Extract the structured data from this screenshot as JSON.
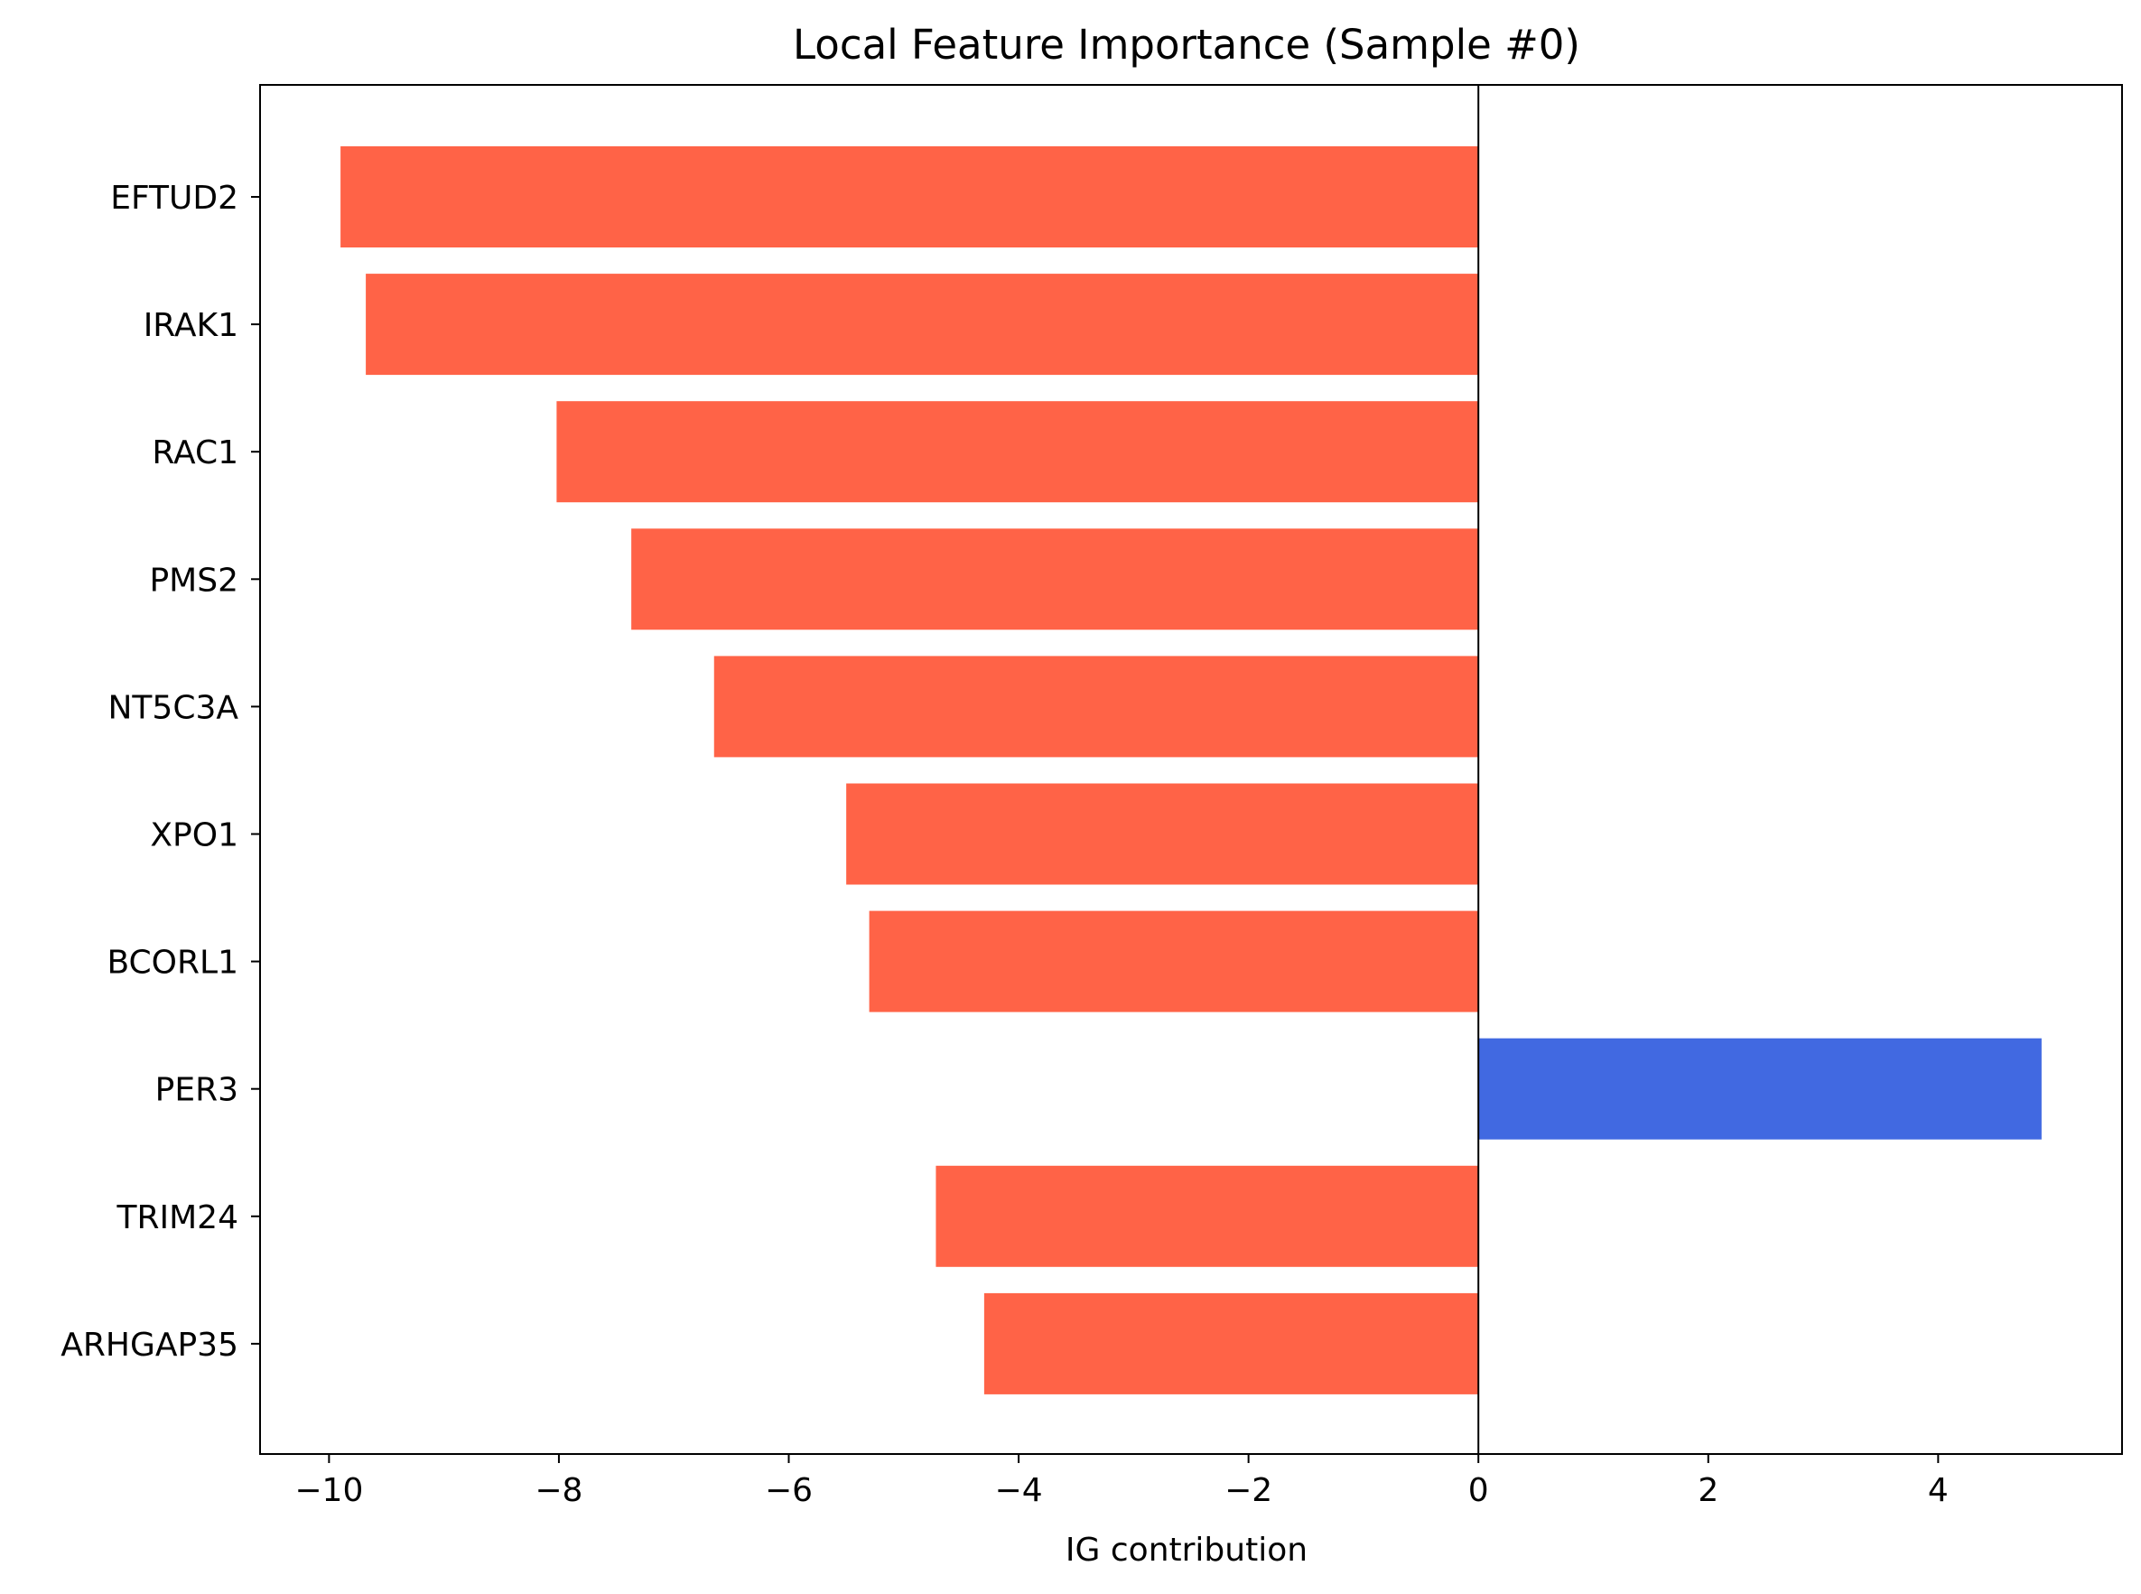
{
  "chart_data": {
    "type": "bar",
    "orientation": "horizontal",
    "title": "Local Feature Importance (Sample #0)",
    "xlabel": "IG contribution",
    "ylabel": "",
    "xlim": [
      -10.6,
      5.6
    ],
    "xticks": [
      -10,
      -8,
      -6,
      -4,
      -2,
      0,
      2,
      4
    ],
    "xtick_labels": [
      "−10",
      "−8",
      "−6",
      "−4",
      "−2",
      "0",
      "2",
      "4"
    ],
    "categories": [
      "EFTUD2",
      "IRAK1",
      "RAC1",
      "PMS2",
      "NT5C3A",
      "XPO1",
      "BCORL1",
      "PER3",
      "TRIM24",
      "ARHGAP35"
    ],
    "values": [
      -9.9,
      -9.68,
      -8.02,
      -7.37,
      -6.65,
      -5.5,
      -5.3,
      4.9,
      -4.72,
      -4.3
    ],
    "colors": {
      "negative": "#ff6347",
      "positive": "#4169e1",
      "zero_line": "#000000"
    },
    "grid": false,
    "legend": false
  }
}
